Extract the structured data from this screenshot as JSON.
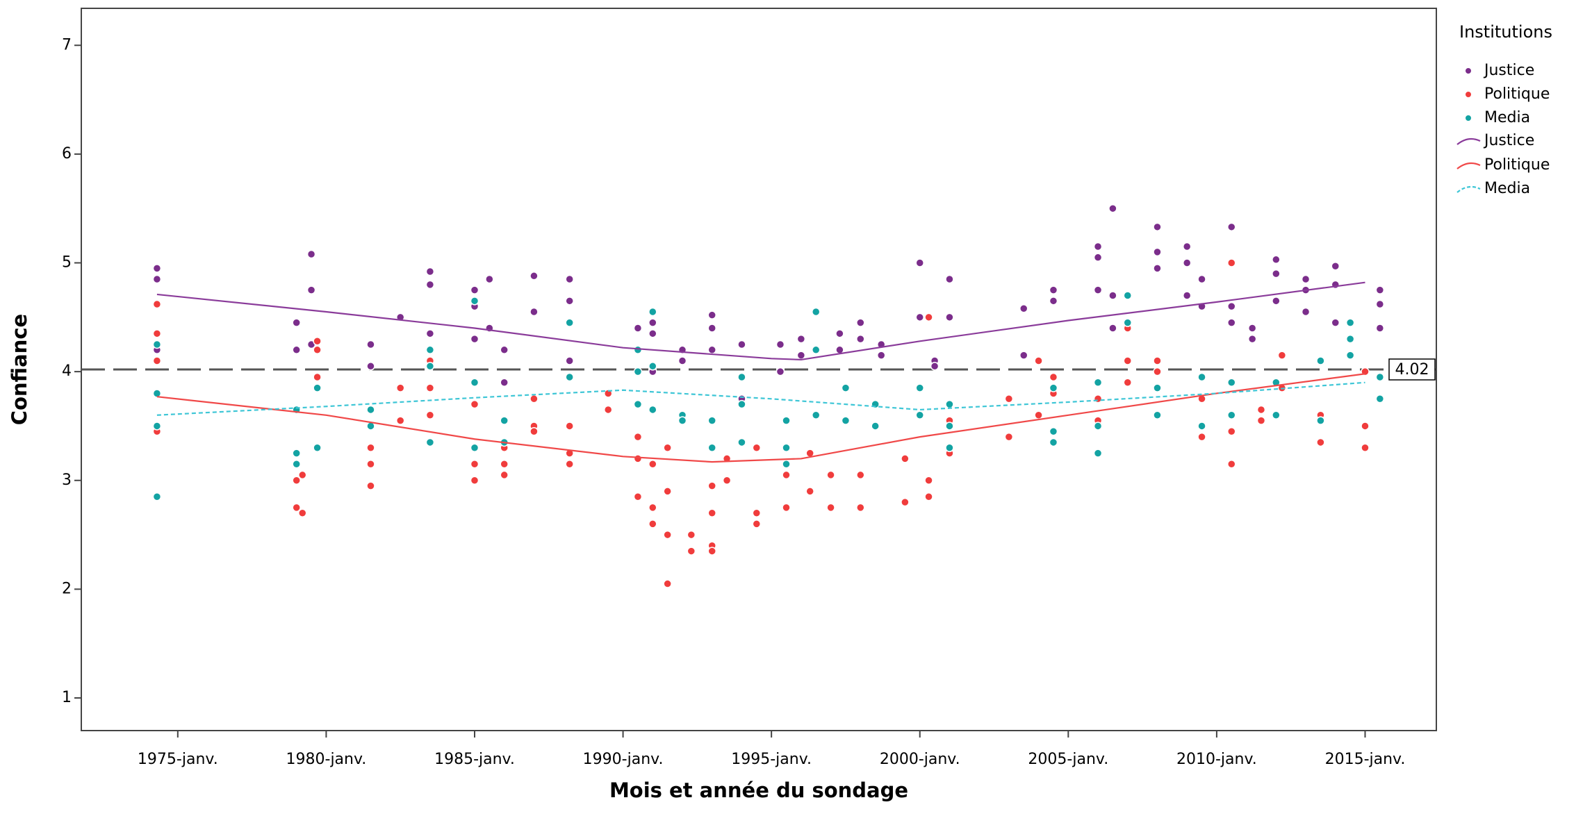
{
  "chart_data": {
    "type": "scatter",
    "xlabel": "Mois et année du sondage",
    "ylabel": "Confiance",
    "xlim": [
      1971.75,
      2017.4
    ],
    "ylim": [
      0.7,
      7.34
    ],
    "xticks": [
      {
        "value": 1975,
        "label": "1975-janv."
      },
      {
        "value": 1980,
        "label": "1980-janv."
      },
      {
        "value": 1985,
        "label": "1985-janv."
      },
      {
        "value": 1990,
        "label": "1990-janv."
      },
      {
        "value": 1995,
        "label": "1995-janv."
      },
      {
        "value": 2000,
        "label": "2000-janv."
      },
      {
        "value": 2005,
        "label": "2005-janv."
      },
      {
        "value": 2010,
        "label": "2010-janv."
      },
      {
        "value": 2015,
        "label": "2015-janv."
      }
    ],
    "yticks": [
      1,
      2,
      3,
      4,
      5,
      6,
      7
    ],
    "reference_line": 4.02,
    "legend_title": "Institutions",
    "legend_position": "right",
    "series": [
      {
        "name": "Justice",
        "type": "scatter",
        "color": "#7b2d8b",
        "x": [
          1974.3,
          1974.3,
          1974.3,
          1979,
          1979,
          1979.5,
          1979.5,
          1979.5,
          1981.5,
          1981.5,
          1982.5,
          1983.5,
          1983.5,
          1983.5,
          1985,
          1985,
          1985,
          1985.5,
          1985.5,
          1986,
          1986,
          1987,
          1987,
          1988.2,
          1988.2,
          1988.2,
          1990.5,
          1990.5,
          1991,
          1991,
          1991,
          1992,
          1992,
          1993,
          1993,
          1993,
          1994,
          1994,
          1995.3,
          1995.3,
          1996,
          1996,
          1997.3,
          1997.3,
          1998,
          1998,
          1998.7,
          1998.7,
          2000,
          2000,
          2000.5,
          2000.5,
          2001,
          2001,
          2003.5,
          2003.5,
          2004.5,
          2004.5,
          2006,
          2006,
          2006,
          2006.5,
          2006.5,
          2006.5,
          2008,
          2008,
          2008,
          2009,
          2009,
          2009,
          2009.5,
          2009.5,
          2010.5,
          2010.5,
          2010.5,
          2011.2,
          2011.2,
          2012,
          2012,
          2012,
          2013,
          2013,
          2013,
          2014,
          2014,
          2014,
          2015.5,
          2015.5,
          2015.5
        ],
        "values": [
          4.95,
          4.85,
          4.2,
          4.45,
          4.2,
          5.08,
          4.75,
          4.25,
          4.25,
          4.05,
          4.5,
          4.92,
          4.8,
          4.35,
          4.75,
          4.6,
          4.3,
          4.85,
          4.4,
          4.2,
          3.9,
          4.88,
          4.55,
          4.85,
          4.65,
          4.1,
          4.4,
          4.2,
          4.45,
          4.35,
          4.0,
          4.2,
          4.1,
          4.52,
          4.4,
          4.2,
          4.25,
          3.75,
          4.25,
          4.0,
          4.3,
          4.15,
          4.35,
          4.2,
          4.45,
          4.3,
          4.25,
          4.15,
          5.0,
          4.5,
          4.1,
          4.05,
          4.85,
          4.5,
          4.58,
          4.15,
          4.75,
          4.65,
          5.15,
          5.05,
          4.75,
          5.5,
          4.7,
          4.4,
          5.33,
          5.1,
          4.95,
          5.15,
          5.0,
          4.7,
          4.85,
          4.6,
          5.33,
          4.6,
          4.45,
          4.4,
          4.3,
          5.03,
          4.9,
          4.65,
          4.85,
          4.75,
          4.55,
          4.97,
          4.8,
          4.45,
          4.75,
          4.62,
          4.4
        ]
      },
      {
        "name": "Politique",
        "type": "scatter",
        "color": "#f03c3c",
        "x": [
          1974.3,
          1974.3,
          1974.3,
          1974.3,
          1979,
          1979,
          1979,
          1979.2,
          1979.2,
          1979.7,
          1979.7,
          1979.7,
          1981.5,
          1981.5,
          1981.5,
          1982.5,
          1982.5,
          1983.5,
          1983.5,
          1983.5,
          1985,
          1985,
          1985,
          1986,
          1986,
          1986,
          1987,
          1987,
          1987,
          1988.2,
          1988.2,
          1988.2,
          1989.5,
          1989.5,
          1990.5,
          1990.5,
          1990.5,
          1991,
          1991,
          1991,
          1991.5,
          1991.5,
          1991.5,
          1991.5,
          1992.3,
          1992.3,
          1993,
          1993,
          1993,
          1993,
          1993.5,
          1993.5,
          1994.5,
          1994.5,
          1994.5,
          1995.5,
          1995.5,
          1995.5,
          1996.3,
          1996.3,
          1997,
          1997,
          1998,
          1998,
          1999.5,
          1999.5,
          2000.3,
          2000.3,
          2000.3,
          2001,
          2001,
          2003,
          2003,
          2004,
          2004,
          2004.5,
          2004.5,
          2006,
          2006,
          2007,
          2007,
          2007,
          2008,
          2008,
          2009.5,
          2009.5,
          2010.5,
          2010.5,
          2010.5,
          2010.5,
          2011.5,
          2011.5,
          2012.2,
          2012.2,
          2013.5,
          2013.5,
          2015,
          2015,
          2015
        ],
        "values": [
          4.62,
          4.35,
          4.1,
          3.45,
          3.15,
          3.0,
          2.75,
          3.05,
          2.7,
          4.28,
          4.2,
          3.95,
          3.3,
          3.15,
          2.95,
          3.85,
          3.55,
          4.1,
          3.85,
          3.6,
          3.15,
          3.0,
          3.7,
          3.3,
          3.15,
          3.05,
          3.75,
          3.5,
          3.45,
          3.5,
          3.25,
          3.15,
          3.8,
          3.65,
          2.85,
          3.2,
          3.4,
          2.6,
          2.75,
          3.15,
          2.05,
          2.5,
          3.3,
          2.9,
          2.5,
          2.35,
          2.4,
          2.35,
          2.7,
          2.95,
          3.0,
          3.2,
          2.7,
          2.6,
          3.3,
          2.75,
          3.05,
          3.15,
          2.9,
          3.25,
          2.75,
          3.05,
          2.75,
          3.05,
          2.8,
          3.2,
          2.85,
          3.0,
          4.5,
          3.55,
          3.25,
          3.75,
          3.4,
          4.1,
          3.6,
          3.95,
          3.8,
          3.55,
          3.75,
          4.4,
          4.1,
          3.9,
          4.1,
          4.0,
          3.75,
          3.4,
          5.0,
          3.15,
          3.45,
          3.6,
          3.65,
          3.55,
          4.15,
          3.85,
          3.35,
          3.6,
          4.0,
          3.5,
          3.3
        ]
      },
      {
        "name": "Media",
        "type": "scatter",
        "color": "#13a3a3",
        "x": [
          1974.3,
          1974.3,
          1974.3,
          1974.3,
          1979,
          1979,
          1979,
          1979.7,
          1979.7,
          1981.5,
          1981.5,
          1983.5,
          1983.5,
          1983.5,
          1985,
          1985,
          1985,
          1986,
          1986,
          1988.2,
          1988.2,
          1990.5,
          1990.5,
          1990.5,
          1991,
          1991,
          1991,
          1992,
          1992,
          1993,
          1993,
          1994,
          1994,
          1994,
          1995.5,
          1995.5,
          1995.5,
          1996.5,
          1996.5,
          1996.5,
          1997.5,
          1997.5,
          1998.5,
          1998.5,
          2000,
          2000,
          2001,
          2001,
          2001,
          2004.5,
          2004.5,
          2004.5,
          2006,
          2006,
          2006,
          2007,
          2007,
          2008,
          2008,
          2009.5,
          2009.5,
          2010.5,
          2010.5,
          2012,
          2012,
          2013.5,
          2013.5,
          2014.5,
          2014.5,
          2014.5,
          2015.5,
          2015.5
        ],
        "values": [
          4.25,
          3.8,
          3.5,
          2.85,
          3.65,
          3.25,
          3.15,
          3.85,
          3.3,
          3.65,
          3.5,
          4.2,
          4.05,
          3.35,
          4.65,
          3.9,
          3.3,
          3.55,
          3.35,
          4.45,
          3.95,
          4.2,
          4.0,
          3.7,
          4.55,
          4.05,
          3.65,
          3.6,
          3.55,
          3.55,
          3.3,
          3.95,
          3.7,
          3.35,
          3.55,
          3.3,
          3.15,
          4.55,
          4.2,
          3.6,
          3.85,
          3.55,
          3.7,
          3.5,
          3.85,
          3.6,
          3.7,
          3.5,
          3.3,
          3.85,
          3.45,
          3.35,
          3.9,
          3.5,
          3.25,
          4.7,
          4.45,
          3.85,
          3.6,
          3.95,
          3.5,
          3.9,
          3.6,
          3.9,
          3.6,
          4.1,
          3.55,
          4.45,
          4.3,
          4.15,
          3.95,
          3.75
        ]
      },
      {
        "name": "Justice",
        "type": "line",
        "color": "#8a3b9a",
        "dashed": false,
        "x": [
          1974.3,
          1980,
          1985,
          1990,
          1995,
          1996,
          2000,
          2005,
          2010,
          2015
        ],
        "values": [
          4.71,
          4.55,
          4.4,
          4.22,
          4.12,
          4.11,
          4.28,
          4.47,
          4.64,
          4.82
        ]
      },
      {
        "name": "Politique",
        "type": "line",
        "color": "#f04848",
        "dashed": false,
        "x": [
          1974.3,
          1980,
          1985,
          1990,
          1993,
          1996,
          2000,
          2005,
          2010,
          2015
        ],
        "values": [
          3.77,
          3.6,
          3.38,
          3.22,
          3.17,
          3.2,
          3.4,
          3.6,
          3.8,
          3.98
        ]
      },
      {
        "name": "Media",
        "type": "line",
        "color": "#3ec6d6",
        "dashed": true,
        "x": [
          1974.3,
          1980,
          1985,
          1990,
          1995,
          2000,
          2005,
          2010,
          2015
        ],
        "values": [
          3.6,
          3.68,
          3.76,
          3.83,
          3.75,
          3.65,
          3.72,
          3.8,
          3.9
        ]
      }
    ]
  }
}
